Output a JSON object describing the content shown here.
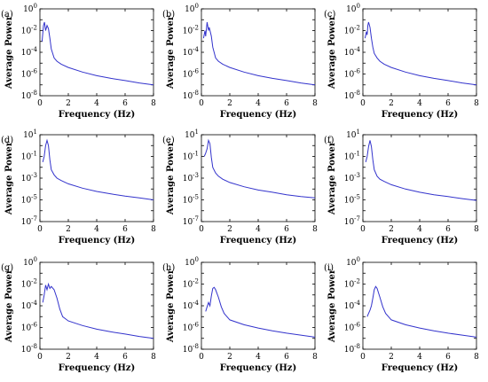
{
  "chart_data": [
    {
      "type": "line",
      "panel_label": "(a)",
      "xlabel": "Frequency (Hz)",
      "ylabel": "Average Power",
      "xlim": [
        0,
        8
      ],
      "ylim": [
        1e-08,
        1
      ],
      "yscale": "log",
      "xticks": [
        "0",
        "2",
        "4",
        "6",
        "8"
      ],
      "yticks": [
        {
          "base": "10",
          "exp": "-8",
          "value": 1e-08
        },
        {
          "base": "10",
          "exp": "-6",
          "value": 1e-06
        },
        {
          "base": "10",
          "exp": "-4",
          "value": 0.0001
        },
        {
          "base": "10",
          "exp": "-2",
          "value": 0.01
        },
        {
          "base": "10",
          "exp": "0",
          "value": 1
        }
      ],
      "series": [
        {
          "color": "#3333cc",
          "x": [
            0.15,
            0.25,
            0.32,
            0.4,
            0.5,
            0.6,
            0.7,
            0.8,
            1.0,
            1.2,
            1.5,
            2,
            3,
            4,
            5,
            6,
            7,
            8
          ],
          "y": [
            0.001,
            0.03,
            0.06,
            0.01,
            0.03,
            0.015,
            0.002,
            0.0002,
            3e-05,
            1.5e-05,
            8e-06,
            4e-06,
            1.5e-06,
            7e-07,
            4e-07,
            2.5e-07,
            1.5e-07,
            1e-07
          ]
        }
      ]
    },
    {
      "type": "line",
      "panel_label": "(b)",
      "xlabel": "Frequency (Hz)",
      "ylabel": "Average Power",
      "xlim": [
        0,
        8
      ],
      "ylim": [
        1e-08,
        1
      ],
      "yscale": "log",
      "xticks": [
        "0",
        "2",
        "4",
        "6",
        "8"
      ],
      "yticks": [
        {
          "base": "10",
          "exp": "-8",
          "value": 1e-08
        },
        {
          "base": "10",
          "exp": "-6",
          "value": 1e-06
        },
        {
          "base": "10",
          "exp": "-4",
          "value": 0.0001
        },
        {
          "base": "10",
          "exp": "-2",
          "value": 0.01
        },
        {
          "base": "10",
          "exp": "0",
          "value": 1
        }
      ],
      "series": [
        {
          "color": "#3333cc",
          "x": [
            0.15,
            0.25,
            0.3,
            0.4,
            0.5,
            0.55,
            0.7,
            0.8,
            1.0,
            1.2,
            1.5,
            2,
            3,
            4,
            5,
            6,
            7,
            8
          ],
          "y": [
            0.002,
            0.01,
            0.003,
            0.06,
            0.01,
            0.02,
            0.003,
            0.0003,
            3e-05,
            1.5e-05,
            8e-06,
            4e-06,
            1.5e-06,
            7e-07,
            4e-07,
            2.5e-07,
            1.5e-07,
            1e-07
          ]
        }
      ]
    },
    {
      "type": "line",
      "panel_label": "(c)",
      "xlabel": "Frequency (Hz)",
      "ylabel": "Average Power",
      "xlim": [
        0,
        8
      ],
      "ylim": [
        1e-08,
        1
      ],
      "yscale": "log",
      "xticks": [
        "0",
        "2",
        "4",
        "6",
        "8"
      ],
      "yticks": [
        {
          "base": "10",
          "exp": "-8",
          "value": 1e-08
        },
        {
          "base": "10",
          "exp": "-6",
          "value": 1e-06
        },
        {
          "base": "10",
          "exp": "-4",
          "value": 0.0001
        },
        {
          "base": "10",
          "exp": "-2",
          "value": 0.01
        },
        {
          "base": "10",
          "exp": "0",
          "value": 1
        }
      ],
      "series": [
        {
          "color": "#3333cc",
          "x": [
            0.15,
            0.25,
            0.3,
            0.35,
            0.4,
            0.5,
            0.6,
            0.7,
            0.8,
            1.0,
            1.2,
            1.5,
            2,
            3,
            4,
            5,
            6,
            7,
            8
          ],
          "y": [
            0.002,
            0.008,
            0.004,
            0.03,
            0.06,
            0.02,
            0.002,
            0.0003,
            8e-05,
            3e-05,
            1.5e-05,
            8e-06,
            4e-06,
            1.5e-06,
            7e-07,
            4e-07,
            2.5e-07,
            1.5e-07,
            1e-07
          ]
        }
      ]
    },
    {
      "type": "line",
      "panel_label": "(d)",
      "xlabel": "Frequency (Hz)",
      "ylabel": "Average Power",
      "xlim": [
        0,
        8
      ],
      "ylim": [
        1e-07,
        10
      ],
      "yscale": "log",
      "xticks": [
        "0",
        "2",
        "4",
        "6",
        "8"
      ],
      "yticks": [
        {
          "base": "10",
          "exp": "-7",
          "value": 1e-07
        },
        {
          "base": "10",
          "exp": "-5",
          "value": 1e-05
        },
        {
          "base": "10",
          "exp": "-3",
          "value": 0.001
        },
        {
          "base": "10",
          "exp": "-1",
          "value": 0.1
        },
        {
          "base": "10",
          "exp": "1",
          "value": 10
        }
      ],
      "series": [
        {
          "color": "#3333cc",
          "x": [
            0.2,
            0.3,
            0.4,
            0.5,
            0.6,
            0.7,
            0.8,
            1.0,
            1.2,
            1.5,
            2,
            3,
            4,
            5,
            6,
            7,
            8
          ],
          "y": [
            0.03,
            0.1,
            1,
            3,
            1,
            0.05,
            0.006,
            0.002,
            0.001,
            0.0006,
            0.0003,
            0.00012,
            6e-05,
            3.5e-05,
            2.2e-05,
            1.5e-05,
            1e-05
          ]
        }
      ]
    },
    {
      "type": "line",
      "panel_label": "(e)",
      "xlabel": "Frequency (Hz)",
      "ylabel": "Average Power",
      "xlim": [
        0,
        8
      ],
      "ylim": [
        1e-07,
        10
      ],
      "yscale": "log",
      "xticks": [
        "0",
        "2",
        "4",
        "6",
        "8"
      ],
      "yticks": [
        {
          "base": "10",
          "exp": "-7",
          "value": 1e-07
        },
        {
          "base": "10",
          "exp": "-5",
          "value": 1e-05
        },
        {
          "base": "10",
          "exp": "-3",
          "value": 0.001
        },
        {
          "base": "10",
          "exp": "-1",
          "value": 0.1
        },
        {
          "base": "10",
          "exp": "1",
          "value": 10
        }
      ],
      "series": [
        {
          "color": "#3333cc",
          "x": [
            0.2,
            0.3,
            0.4,
            0.5,
            0.6,
            0.7,
            0.8,
            1.0,
            1.2,
            1.5,
            2,
            3,
            4,
            5,
            6,
            7,
            8
          ],
          "y": [
            0.1,
            0.2,
            0.5,
            3,
            1.5,
            0.08,
            0.01,
            0.003,
            0.0015,
            0.0008,
            0.0004,
            0.00016,
            8e-05,
            5e-05,
            3e-05,
            2e-05,
            1.5e-05
          ]
        }
      ]
    },
    {
      "type": "line",
      "panel_label": "(f)",
      "xlabel": "Frequency (Hz)",
      "ylabel": "Average Power",
      "xlim": [
        0,
        8
      ],
      "ylim": [
        1e-07,
        10
      ],
      "yscale": "log",
      "xticks": [
        "0",
        "2",
        "4",
        "6",
        "8"
      ],
      "yticks": [
        {
          "base": "10",
          "exp": "-7",
          "value": 1e-07
        },
        {
          "base": "10",
          "exp": "-5",
          "value": 1e-05
        },
        {
          "base": "10",
          "exp": "-3",
          "value": 0.001
        },
        {
          "base": "10",
          "exp": "-1",
          "value": 0.1
        },
        {
          "base": "10",
          "exp": "1",
          "value": 10
        }
      ],
      "series": [
        {
          "color": "#3333cc",
          "x": [
            0.2,
            0.3,
            0.4,
            0.5,
            0.6,
            0.7,
            0.8,
            1.0,
            1.2,
            1.5,
            2,
            3,
            4,
            5,
            6,
            7,
            8
          ],
          "y": [
            0.03,
            0.1,
            0.8,
            3,
            0.8,
            0.05,
            0.006,
            0.0015,
            0.0008,
            0.0005,
            0.00025,
            0.0001,
            5e-05,
            3e-05,
            2e-05,
            1.3e-05,
            9e-06
          ]
        }
      ]
    },
    {
      "type": "line",
      "panel_label": "(g)",
      "xlabel": "Frequency (Hz)",
      "ylabel": "Average Power",
      "xlim": [
        0,
        8
      ],
      "ylim": [
        1e-08,
        1
      ],
      "yscale": "log",
      "xticks": [
        "0",
        "2",
        "4",
        "6",
        "8"
      ],
      "yticks": [
        {
          "base": "10",
          "exp": "-8",
          "value": 1e-08
        },
        {
          "base": "10",
          "exp": "-6",
          "value": 1e-06
        },
        {
          "base": "10",
          "exp": "-4",
          "value": 0.0001
        },
        {
          "base": "10",
          "exp": "-2",
          "value": 0.01
        },
        {
          "base": "10",
          "exp": "0",
          "value": 1
        }
      ],
      "series": [
        {
          "color": "#3333cc",
          "x": [
            0.2,
            0.3,
            0.4,
            0.5,
            0.6,
            0.7,
            0.8,
            1.0,
            1.2,
            1.4,
            1.6,
            2,
            3,
            4,
            5,
            6,
            7,
            8
          ],
          "y": [
            0.0002,
            0.001,
            0.008,
            0.003,
            0.01,
            0.004,
            0.006,
            0.003,
            0.0005,
            5e-05,
            1e-05,
            4e-06,
            1.5e-06,
            7e-07,
            4e-07,
            2.5e-07,
            1.5e-07,
            1e-07
          ]
        }
      ]
    },
    {
      "type": "line",
      "panel_label": "(h)",
      "xlabel": "Frequency (Hz)",
      "ylabel": "Average Power",
      "xlim": [
        0,
        8
      ],
      "ylim": [
        1e-08,
        1
      ],
      "yscale": "log",
      "xticks": [
        "0",
        "2",
        "4",
        "6",
        "8"
      ],
      "yticks": [
        {
          "base": "10",
          "exp": "-8",
          "value": 1e-08
        },
        {
          "base": "10",
          "exp": "-6",
          "value": 1e-06
        },
        {
          "base": "10",
          "exp": "-4",
          "value": 0.0001
        },
        {
          "base": "10",
          "exp": "-2",
          "value": 0.01
        },
        {
          "base": "10",
          "exp": "0",
          "value": 1
        }
      ],
      "series": [
        {
          "color": "#3333cc",
          "x": [
            0.3,
            0.4,
            0.5,
            0.6,
            0.7,
            0.8,
            0.9,
            1.0,
            1.2,
            1.4,
            1.6,
            2,
            3,
            4,
            5,
            6,
            7,
            8
          ],
          "y": [
            3e-05,
            8e-05,
            0.0002,
            0.0001,
            0.0008,
            0.004,
            0.005,
            0.003,
            0.0006,
            8e-05,
            2e-05,
            5e-06,
            1.8e-06,
            9e-07,
            5e-07,
            3e-07,
            2e-07,
            1.3e-07
          ]
        }
      ]
    },
    {
      "type": "line",
      "panel_label": "(i)",
      "xlabel": "Frequency (Hz)",
      "ylabel": "Average Power",
      "xlim": [
        0,
        8
      ],
      "ylim": [
        1e-08,
        1
      ],
      "yscale": "log",
      "xticks": [
        "0",
        "2",
        "4",
        "6",
        "8"
      ],
      "yticks": [
        {
          "base": "10",
          "exp": "-8",
          "value": 1e-08
        },
        {
          "base": "10",
          "exp": "-6",
          "value": 1e-06
        },
        {
          "base": "10",
          "exp": "-4",
          "value": 0.0001
        },
        {
          "base": "10",
          "exp": "-2",
          "value": 0.01
        },
        {
          "base": "10",
          "exp": "0",
          "value": 1
        }
      ],
      "series": [
        {
          "color": "#3333cc",
          "x": [
            0.3,
            0.4,
            0.5,
            0.6,
            0.7,
            0.8,
            0.9,
            1.0,
            1.2,
            1.4,
            1.6,
            2,
            3,
            4,
            5,
            6,
            7,
            8
          ],
          "y": [
            1e-05,
            2e-05,
            4e-05,
            0.0001,
            0.0005,
            0.003,
            0.006,
            0.004,
            0.0006,
            8e-05,
            2e-05,
            5e-06,
            1.8e-06,
            9e-07,
            5e-07,
            3e-07,
            2e-07,
            1.3e-07
          ]
        }
      ]
    }
  ]
}
